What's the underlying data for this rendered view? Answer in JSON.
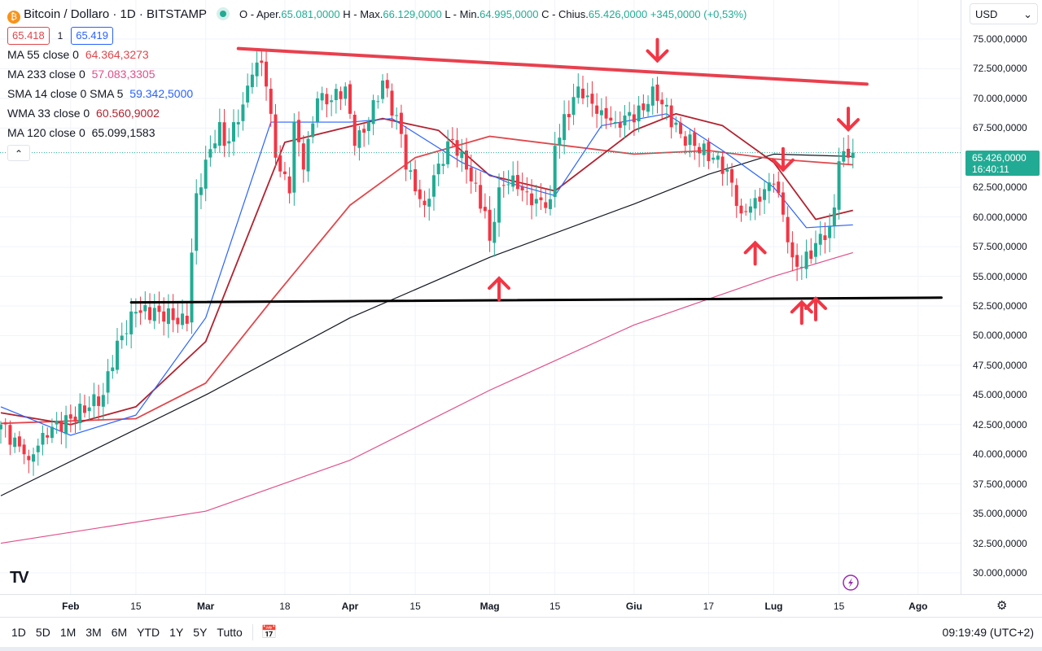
{
  "header": {
    "symbol": "Bitcoin / Dollaro · 1D · BITSTAMP",
    "open_label": "O - Aper.",
    "open": "65.081,0000",
    "high_label": "H - Max.",
    "high": "66.129,0000",
    "low_label": "L - Min.",
    "low": "64.995,0000",
    "close_label": "C - Chius.",
    "close": "65.426,0000",
    "change": "+345,0000 (+0,53%)",
    "sell": "65.418",
    "spread": "1",
    "buy": "65.419"
  },
  "indicators": [
    {
      "label": "MA 55 close 0",
      "value": "64.364,3273",
      "color": "#e0474c"
    },
    {
      "label": "MA 233 close 0",
      "value": "57.083,3305",
      "color": "#e0508a"
    },
    {
      "label": "SMA 14 close 0 SMA 5",
      "value": "59.342,5000",
      "color": "#2962ff"
    },
    {
      "label": "WMA 33 close 0",
      "value": "60.560,9002",
      "color": "#b2222f"
    },
    {
      "label": "MA 120 close 0",
      "value": "65.099,1583",
      "color": "#131722"
    }
  ],
  "currency": "USD",
  "current_price": {
    "value": "65.426,0000",
    "countdown": "16:40:11"
  },
  "range_buttons": [
    "1D",
    "5D",
    "1M",
    "3M",
    "6M",
    "YTD",
    "1Y",
    "5Y",
    "Tutto"
  ],
  "clock": "09:19:49 (UTC+2)",
  "chart_data": {
    "type": "candlestick",
    "title": "Bitcoin / Dollaro · 1D · BITSTAMP",
    "ylim": [
      28500,
      76500
    ],
    "y_ticks": [
      [
        75000,
        "75.000,0000"
      ],
      [
        72500,
        "72.500,0000"
      ],
      [
        70000,
        "70.000,0000"
      ],
      [
        67500,
        "67.500,0000"
      ],
      [
        62500,
        "62.500,0000"
      ],
      [
        60000,
        "60.000,0000"
      ],
      [
        57500,
        "57.500,0000"
      ],
      [
        55000,
        "55.000,0000"
      ],
      [
        52500,
        "52.500,0000"
      ],
      [
        50000,
        "50.000,0000"
      ],
      [
        47500,
        "47.500,0000"
      ],
      [
        45000,
        "45.000,0000"
      ],
      [
        42500,
        "42.500,0000"
      ],
      [
        40000,
        "40.000,0000"
      ],
      [
        37500,
        "37.500,0000"
      ],
      [
        35000,
        "35.000,0000"
      ],
      [
        32500,
        "32.500,0000"
      ],
      [
        30000,
        "30.000,0000"
      ]
    ],
    "x_ticks": [
      [
        "02-01",
        "Feb",
        1
      ],
      [
        "02-15",
        "15",
        0
      ],
      [
        "03-01",
        "Mar",
        1
      ],
      [
        "03-18",
        "18",
        0
      ],
      [
        "04-01",
        "Apr",
        1
      ],
      [
        "04-15",
        "15",
        0
      ],
      [
        "05-01",
        "Mag",
        1
      ],
      [
        "05-15",
        "15",
        0
      ],
      [
        "06-01",
        "Giu",
        1
      ],
      [
        "06-17",
        "17",
        0
      ],
      [
        "07-01",
        "Lug",
        1
      ],
      [
        "07-15",
        "15",
        0
      ],
      [
        "08-01",
        "Ago",
        1
      ]
    ],
    "current_close": 65426,
    "close_keyframes": [
      [
        "01-17",
        42500
      ],
      [
        "01-22",
        40000
      ],
      [
        "01-23",
        39500
      ],
      [
        "01-26",
        41800
      ],
      [
        "02-01",
        43000
      ],
      [
        "02-08",
        45000
      ],
      [
        "02-09",
        47000
      ],
      [
        "02-12",
        50000
      ],
      [
        "02-15",
        52000
      ],
      [
        "02-20",
        52000
      ],
      [
        "02-26",
        51000
      ],
      [
        "02-27",
        57000
      ],
      [
        "02-28",
        62000
      ],
      [
        "03-04",
        68000
      ],
      [
        "03-05",
        66000
      ],
      [
        "03-08",
        68000
      ],
      [
        "03-11",
        72000
      ],
      [
        "03-13",
        73000
      ],
      [
        "03-14",
        71000
      ],
      [
        "03-16",
        65000
      ],
      [
        "03-19",
        62000
      ],
      [
        "03-20",
        68000
      ],
      [
        "03-22",
        64000
      ],
      [
        "03-25",
        70000
      ],
      [
        "03-27",
        69500
      ],
      [
        "03-31",
        71000
      ],
      [
        "04-02",
        66000
      ],
      [
        "04-05",
        68000
      ],
      [
        "04-08",
        71500
      ],
      [
        "04-12",
        67000
      ],
      [
        "04-13",
        64000
      ],
      [
        "04-17",
        61000
      ],
      [
        "04-20",
        64500
      ],
      [
        "04-23",
        66500
      ],
      [
        "04-26",
        64000
      ],
      [
        "04-30",
        60500
      ],
      [
        "05-01",
        58000
      ],
      [
        "05-03",
        62500
      ],
      [
        "05-06",
        63500
      ],
      [
        "05-10",
        61000
      ],
      [
        "05-14",
        61500
      ],
      [
        "05-15",
        66000
      ],
      [
        "05-20",
        71000
      ],
      [
        "05-21",
        70000
      ],
      [
        "05-25",
        69000
      ],
      [
        "05-28",
        68000
      ],
      [
        "06-03",
        69000
      ],
      [
        "06-05",
        71000
      ],
      [
        "06-07",
        69500
      ],
      [
        "06-11",
        67000
      ],
      [
        "06-14",
        66000
      ],
      [
        "06-18",
        65000
      ],
      [
        "06-21",
        64000
      ],
      [
        "06-24",
        60300
      ],
      [
        "06-27",
        61600
      ],
      [
        "07-01",
        62800
      ],
      [
        "07-03",
        60200
      ],
      [
        "07-05",
        56600
      ],
      [
        "07-07",
        55800
      ],
      [
        "07-10",
        57800
      ],
      [
        "07-13",
        59200
      ],
      [
        "07-14",
        60800
      ],
      [
        "07-15",
        64700
      ],
      [
        "07-17",
        65000
      ],
      [
        "07-18",
        65426
      ]
    ],
    "series": [
      {
        "name": "MA 120",
        "color": "#131722",
        "points": [
          [
            "01-17",
            36500
          ],
          [
            "03-01",
            45000
          ],
          [
            "04-01",
            51500
          ],
          [
            "05-01",
            56600
          ],
          [
            "06-01",
            61100
          ],
          [
            "06-17",
            63600
          ],
          [
            "07-01",
            65300
          ],
          [
            "07-18",
            65100
          ]
        ]
      },
      {
        "name": "MA 233",
        "color": "#e0508a",
        "points": [
          [
            "01-17",
            32500
          ],
          [
            "03-01",
            35200
          ],
          [
            "04-01",
            39500
          ],
          [
            "05-01",
            45400
          ],
          [
            "06-01",
            50900
          ],
          [
            "07-01",
            55000
          ],
          [
            "07-18",
            57000
          ]
        ]
      },
      {
        "name": "MA 55",
        "color": "#e0474c",
        "points": [
          [
            "01-17",
            42600
          ],
          [
            "02-15",
            43000
          ],
          [
            "03-01",
            46000
          ],
          [
            "03-15",
            52900
          ],
          [
            "04-01",
            61000
          ],
          [
            "04-15",
            65000
          ],
          [
            "05-01",
            66800
          ],
          [
            "06-01",
            65300
          ],
          [
            "06-17",
            65600
          ],
          [
            "07-01",
            64900
          ],
          [
            "07-18",
            64400
          ]
        ]
      },
      {
        "name": "WMA 33",
        "color": "#b2222f",
        "points": [
          [
            "01-17",
            43500
          ],
          [
            "02-01",
            42500
          ],
          [
            "02-15",
            44000
          ],
          [
            "03-01",
            49500
          ],
          [
            "03-18",
            66300
          ],
          [
            "04-08",
            68300
          ],
          [
            "04-20",
            67300
          ],
          [
            "05-01",
            63500
          ],
          [
            "05-15",
            62200
          ],
          [
            "06-01",
            67300
          ],
          [
            "06-10",
            68700
          ],
          [
            "06-20",
            67700
          ],
          [
            "07-01",
            64600
          ],
          [
            "07-10",
            59800
          ],
          [
            "07-18",
            60560
          ]
        ]
      },
      {
        "name": "SMA 14",
        "color": "#2962ff",
        "points": [
          [
            "01-17",
            44000
          ],
          [
            "02-01",
            41600
          ],
          [
            "02-15",
            43300
          ],
          [
            "03-01",
            51500
          ],
          [
            "03-15",
            68000
          ],
          [
            "04-01",
            68000
          ],
          [
            "04-10",
            68300
          ],
          [
            "04-25",
            64600
          ],
          [
            "05-05",
            62900
          ],
          [
            "05-15",
            61800
          ],
          [
            "05-25",
            67700
          ],
          [
            "06-08",
            68700
          ],
          [
            "06-20",
            65600
          ],
          [
            "07-01",
            62500
          ],
          [
            "07-08",
            59100
          ],
          [
            "07-18",
            59340
          ]
        ]
      }
    ],
    "trendlines": [
      {
        "name": "resistance-line",
        "color": "#e8404e",
        "from": [
          "03-08",
          74200
        ],
        "to": [
          "07-21",
          71200
        ]
      },
      {
        "name": "support-line",
        "color": "#000000",
        "from": [
          "02-14",
          52800
        ],
        "to": [
          "08-06",
          53200
        ]
      }
    ],
    "arrows": [
      {
        "dir": "down",
        "date": "06-06",
        "price": 74000
      },
      {
        "dir": "down",
        "date": "07-17",
        "price": 68200
      },
      {
        "dir": "down",
        "date": "07-03",
        "price": 64800
      },
      {
        "dir": "up",
        "date": "06-27",
        "price": 57000
      },
      {
        "dir": "up",
        "date": "05-03",
        "price": 54000
      },
      {
        "dir": "up",
        "date": "07-07",
        "price": 52000
      },
      {
        "dir": "up",
        "date": "07-10",
        "price": 52300
      }
    ]
  }
}
